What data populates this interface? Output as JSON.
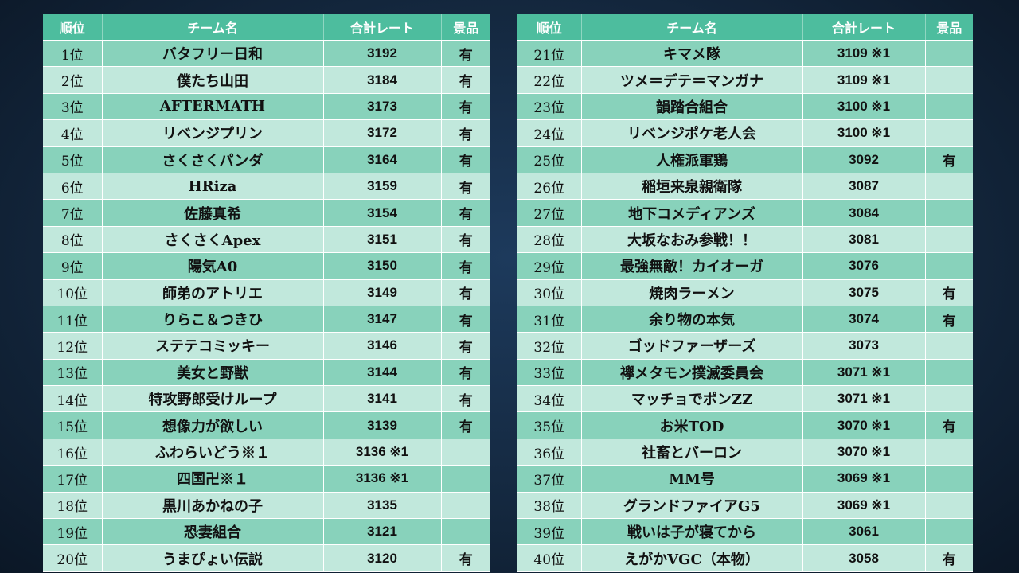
{
  "headers": {
    "rank": "順位",
    "team": "チーム名",
    "rate": "合計レート",
    "prize": "景品"
  },
  "left_rows": [
    {
      "rank": "1位",
      "team": "バタフリー日和",
      "rate": "3192",
      "prize": "有"
    },
    {
      "rank": "2位",
      "team": "僕たち山田",
      "rate": "3184",
      "prize": "有"
    },
    {
      "rank": "3位",
      "team": "AFTERMATH",
      "rate": "3173",
      "prize": "有"
    },
    {
      "rank": "4位",
      "team": "リベンジプリン",
      "rate": "3172",
      "prize": "有"
    },
    {
      "rank": "5位",
      "team": "さくさくパンダ",
      "rate": "3164",
      "prize": "有"
    },
    {
      "rank": "6位",
      "team": "HRiza",
      "rate": "3159",
      "prize": "有"
    },
    {
      "rank": "7位",
      "team": "佐藤真希",
      "rate": "3154",
      "prize": "有"
    },
    {
      "rank": "8位",
      "team": "さくさくApex",
      "rate": "3151",
      "prize": "有"
    },
    {
      "rank": "9位",
      "team": "陽気A0",
      "rate": "3150",
      "prize": "有"
    },
    {
      "rank": "10位",
      "team": "師弟のアトリエ",
      "rate": "3149",
      "prize": "有"
    },
    {
      "rank": "11位",
      "team": "りらこ＆つきひ",
      "rate": "3147",
      "prize": "有"
    },
    {
      "rank": "12位",
      "team": "ステテコミッキー",
      "rate": "3146",
      "prize": "有"
    },
    {
      "rank": "13位",
      "team": "美女と野獣",
      "rate": "3144",
      "prize": "有"
    },
    {
      "rank": "14位",
      "team": "特攻野郎受けループ",
      "rate": "3141",
      "prize": "有"
    },
    {
      "rank": "15位",
      "team": "想像力が欲しい",
      "rate": "3139",
      "prize": "有"
    },
    {
      "rank": "16位",
      "team": "ふわらいどう※１",
      "rate": "3136 ※1",
      "prize": ""
    },
    {
      "rank": "17位",
      "team": "四国卍※１",
      "rate": "3136 ※1",
      "prize": ""
    },
    {
      "rank": "18位",
      "team": "黒川あかねの子",
      "rate": "3135",
      "prize": ""
    },
    {
      "rank": "19位",
      "team": "恐妻組合",
      "rate": "3121",
      "prize": ""
    },
    {
      "rank": "20位",
      "team": "うまぴょい伝説",
      "rate": "3120",
      "prize": "有"
    }
  ],
  "right_rows": [
    {
      "rank": "21位",
      "team": "キマメ隊",
      "rate": "3109 ※1",
      "prize": ""
    },
    {
      "rank": "22位",
      "team": "ツメ＝デテ＝マンガナ",
      "rate": "3109 ※1",
      "prize": ""
    },
    {
      "rank": "23位",
      "team": "韻踏合組合",
      "rate": "3100 ※1",
      "prize": ""
    },
    {
      "rank": "24位",
      "team": "リベンジポケ老人会",
      "rate": "3100 ※1",
      "prize": ""
    },
    {
      "rank": "25位",
      "team": "人権派軍鶏",
      "rate": "3092",
      "prize": "有"
    },
    {
      "rank": "26位",
      "team": "稲垣来泉親衛隊",
      "rate": "3087",
      "prize": ""
    },
    {
      "rank": "27位",
      "team": "地下コメディアンズ",
      "rate": "3084",
      "prize": ""
    },
    {
      "rank": "28位",
      "team": "大坂なおみ参戦！！",
      "rate": "3081",
      "prize": ""
    },
    {
      "rank": "29位",
      "team": "最強無敵！カイオーガ",
      "rate": "3076",
      "prize": ""
    },
    {
      "rank": "30位",
      "team": "焼肉ラーメン",
      "rate": "3075",
      "prize": "有"
    },
    {
      "rank": "31位",
      "team": "余り物の本気",
      "rate": "3074",
      "prize": "有"
    },
    {
      "rank": "32位",
      "team": "ゴッドファーザーズ",
      "rate": "3073",
      "prize": ""
    },
    {
      "rank": "33位",
      "team": "襷メタモン撲滅委員会",
      "rate": "3071 ※1",
      "prize": ""
    },
    {
      "rank": "34位",
      "team": "マッチョでポンZZ",
      "rate": "3071 ※1",
      "prize": ""
    },
    {
      "rank": "35位",
      "team": "お米TOD",
      "rate": "3070 ※1",
      "prize": "有"
    },
    {
      "rank": "36位",
      "team": "社畜とバーロン",
      "rate": "3070 ※1",
      "prize": ""
    },
    {
      "rank": "37位",
      "team": "MM号",
      "rate": "3069 ※1",
      "prize": ""
    },
    {
      "rank": "38位",
      "team": "グランドファイアG5",
      "rate": "3069 ※1",
      "prize": ""
    },
    {
      "rank": "39位",
      "team": "戦いは子が寝てから",
      "rate": "3061",
      "prize": ""
    },
    {
      "rank": "40位",
      "team": "えがかVGC（本物）",
      "rate": "3058",
      "prize": "有"
    }
  ]
}
